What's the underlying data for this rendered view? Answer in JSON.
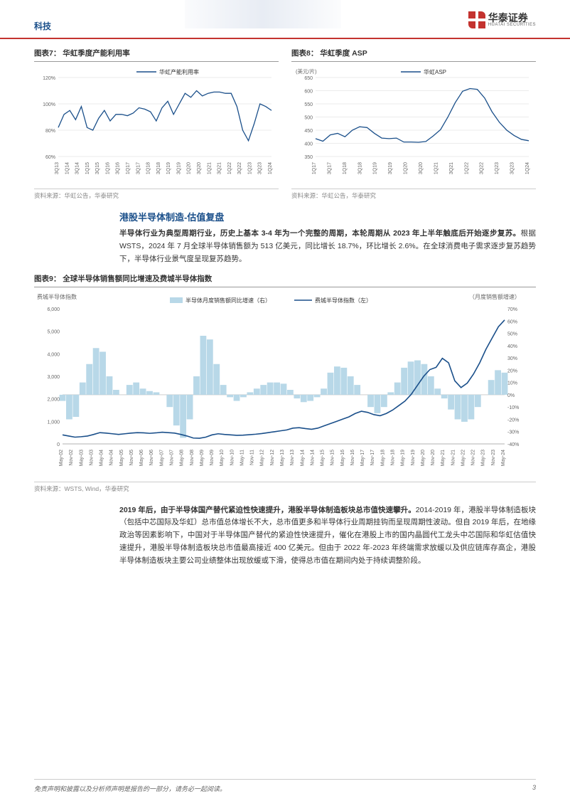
{
  "header": {
    "category": "科技",
    "logo_cn": "华泰证券",
    "logo_en": "HUATAI SECURITIES"
  },
  "chart7": {
    "title": "图表7：  华虹季度产能利用率",
    "type": "line",
    "legend": "华虹产能利用率",
    "ylabel_unit": "120%",
    "y_ticks": [
      "60%",
      "80%",
      "100%",
      "120%"
    ],
    "y_values": [
      60,
      80,
      100,
      120
    ],
    "x_ticks": [
      "3Q13",
      "1Q14",
      "3Q14",
      "1Q15",
      "3Q15",
      "1Q16",
      "3Q16",
      "1Q17",
      "3Q17",
      "1Q18",
      "3Q18",
      "1Q19",
      "3Q19",
      "1Q20",
      "3Q20",
      "1Q21",
      "3Q21",
      "1Q22",
      "3Q22",
      "1Q23",
      "3Q23",
      "1Q24"
    ],
    "values": [
      82,
      92,
      95,
      88,
      98,
      82,
      80,
      89,
      95,
      87,
      92,
      92,
      91,
      93,
      97,
      96,
      94,
      87,
      97,
      102,
      92,
      100,
      108,
      105,
      110,
      106,
      108,
      109,
      109,
      108,
      108,
      98,
      80,
      72,
      85,
      100,
      98,
      95
    ],
    "colors": {
      "line": "#1a4f8a",
      "grid": "#d8d8d8",
      "axis": "#666",
      "bg": "#ffffff"
    },
    "line_width": 1.3,
    "font_size_axis": 7,
    "source": "资料来源：华虹公告，华泰研究"
  },
  "chart8": {
    "title": "图表8：  华虹季度 ASP",
    "type": "line",
    "legend": "华虹ASP",
    "y_unit_label": "(美元/片)",
    "y_ticks": [
      "350",
      "400",
      "450",
      "500",
      "550",
      "600",
      "650"
    ],
    "y_values": [
      350,
      400,
      450,
      500,
      550,
      600,
      650
    ],
    "x_ticks": [
      "1Q17",
      "3Q17",
      "1Q18",
      "3Q18",
      "1Q19",
      "3Q19",
      "1Q20",
      "3Q20",
      "1Q21",
      "3Q21",
      "1Q22",
      "3Q22",
      "1Q23",
      "3Q23",
      "1Q24"
    ],
    "values": [
      418,
      408,
      432,
      438,
      425,
      450,
      463,
      460,
      438,
      420,
      418,
      420,
      405,
      405,
      404,
      407,
      428,
      452,
      500,
      555,
      598,
      608,
      605,
      572,
      520,
      480,
      450,
      430,
      415,
      410
    ],
    "colors": {
      "line": "#1a4f8a",
      "grid": "#d8d8d8",
      "axis": "#666",
      "bg": "#ffffff"
    },
    "line_width": 1.3,
    "font_size_axis": 7,
    "source": "资料来源：华虹公告，华泰研究"
  },
  "section1": {
    "title": "港股半导体制造-估值复盘",
    "paragraph_bold": "半导体行业为典型周期行业，历史上基本 3-4 年为一个完整的周期，本轮周期从 2023 年上半年触底后开始逐步复苏。",
    "paragraph_rest": "根据 WSTS，2024 年 7 月全球半导体销售额为 513 亿美元，同比增长 18.7%，环比增长 2.6%。在全球消费电子需求逐步复苏趋势下，半导体行业景气度呈现复苏趋势。"
  },
  "chart9": {
    "title": "图表9：  全球半导体销售额同比增速及费城半导体指数",
    "type": "dual-axis",
    "left_ylabel": "费城半导体指数",
    "right_ylabel": "（月度销售额增速）",
    "legend_bar": "半导体月度销售额同比增速（右）",
    "legend_line": "费城半导体指数（左）",
    "left_y_ticks": [
      "0",
      "1,000",
      "2,000",
      "3,000",
      "4,000",
      "5,000",
      "6,000"
    ],
    "left_y_values": [
      0,
      1000,
      2000,
      3000,
      4000,
      5000,
      6000
    ],
    "right_y_ticks": [
      "-40%",
      "-30%",
      "-20%",
      "-10%",
      "0%",
      "10%",
      "20%",
      "30%",
      "40%",
      "50%",
      "60%",
      "70%"
    ],
    "right_y_values": [
      -40,
      -30,
      -20,
      -10,
      0,
      10,
      20,
      30,
      40,
      50,
      60,
      70
    ],
    "x_ticks": [
      "May-02",
      "Nov-02",
      "May-03",
      "Nov-03",
      "May-04",
      "Nov-04",
      "May-05",
      "Nov-05",
      "May-06",
      "Nov-06",
      "May-07",
      "Nov-07",
      "May-08",
      "Nov-08",
      "May-09",
      "Nov-09",
      "May-10",
      "Nov-10",
      "May-11",
      "Nov-11",
      "May-12",
      "Nov-12",
      "May-13",
      "Nov-13",
      "May-14",
      "Nov-14",
      "May-15",
      "Nov-15",
      "May-16",
      "Nov-16",
      "May-17",
      "Nov-17",
      "May-18",
      "Nov-18",
      "May-19",
      "Nov-19",
      "May-20",
      "Nov-20",
      "May-21",
      "Nov-21",
      "May-22",
      "Nov-22",
      "May-23",
      "Nov-23",
      "May-24"
    ],
    "bar_values": [
      -5,
      -20,
      -18,
      10,
      25,
      38,
      35,
      15,
      4,
      0,
      8,
      10,
      5,
      3,
      2,
      0,
      -10,
      -25,
      -35,
      -20,
      15,
      48,
      45,
      25,
      8,
      -2,
      -5,
      -2,
      2,
      5,
      8,
      10,
      10,
      9,
      4,
      -3,
      -6,
      -5,
      -2,
      5,
      18,
      23,
      22,
      15,
      8,
      0,
      -10,
      -15,
      -10,
      2,
      10,
      22,
      27,
      28,
      25,
      15,
      5,
      -3,
      -12,
      -20,
      -22,
      -20,
      -10,
      0,
      12,
      20,
      18
    ],
    "line_values": [
      400,
      350,
      300,
      320,
      350,
      420,
      500,
      480,
      450,
      420,
      450,
      480,
      500,
      490,
      470,
      490,
      520,
      500,
      480,
      420,
      350,
      260,
      250,
      300,
      400,
      450,
      420,
      400,
      380,
      390,
      410,
      430,
      460,
      500,
      540,
      580,
      620,
      700,
      720,
      680,
      650,
      700,
      800,
      900,
      1000,
      1100,
      1200,
      1350,
      1450,
      1400,
      1300,
      1250,
      1350,
      1500,
      1700,
      1900,
      2200,
      2600,
      3000,
      3300,
      3400,
      3800,
      3600,
      2800,
      2500,
      2700,
      3100,
      3600,
      4200,
      4700,
      5200,
      5500
    ],
    "colors": {
      "bar": "#b8d8e8",
      "line": "#1a4f8a",
      "grid": "#e8e8e8",
      "axis": "#666",
      "bg": "#ffffff",
      "zero_line": "#b0b0b0"
    },
    "line_width": 1.6,
    "font_size_axis": 7,
    "source": "资料来源：WSTS, Wind，华泰研究"
  },
  "section2": {
    "paragraph_bold": "2019 年后，由于半导体国产替代紧迫性快速提升，港股半导体制造板块总市值快速攀升。",
    "paragraph_rest": "2014-2019 年，港股半导体制造板块（包括中芯国际及华虹）总市值总体增长不大，总市值更多和半导体行业周期挂钩而呈现周期性波动。但自 2019 年后，在地缘政治等因素影响下，中国对于半导体国产替代的紧迫性快速提升，催化在港股上市的国内晶圆代工龙头中芯国际和华虹估值快速提升，港股半导体制造板块总市值最高接近 400 亿美元。但由于 2022 年-2023 年终端需求放缓以及供应链库存高企，港股半导体制造板块主要公司业绩整体出现放缓或下滑，使得总市值在期间内处于持续调整阶段。"
  },
  "footer": {
    "disclaimer": "免责声明和披露以及分析师声明是报告的一部分，请务必一起阅读。",
    "page": "3"
  }
}
